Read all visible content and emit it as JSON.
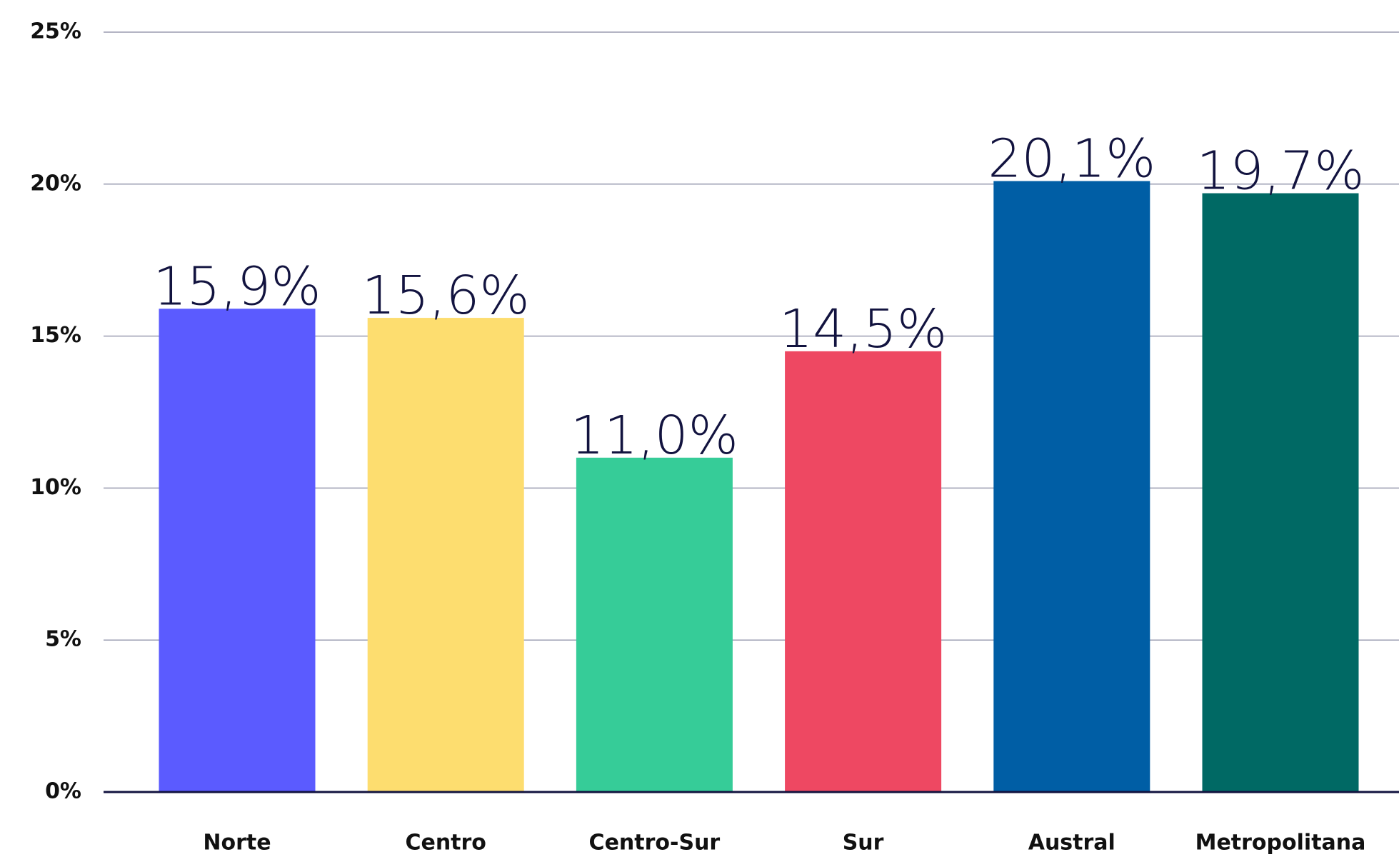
{
  "chart_data": {
    "type": "bar",
    "categories": [
      "Norte",
      "Centro",
      "Centro-Sur",
      "Sur",
      "Austral",
      "Metropolitana"
    ],
    "values": [
      15.9,
      15.6,
      11.0,
      14.5,
      20.1,
      19.7
    ],
    "value_labels": [
      "15,9%",
      "15,6%",
      "11,0%",
      "14,5%",
      "20,1%",
      "19,7%"
    ],
    "colors": [
      "#5b5bff",
      "#fddd6f",
      "#36cc98",
      "#ee4862",
      "#005ea5",
      "#006964"
    ],
    "ylim": [
      0,
      25
    ],
    "yticks": [
      {
        "value": 0,
        "label": "0%"
      },
      {
        "value": 5,
        "label": "5%"
      },
      {
        "value": 10,
        "label": "10%"
      },
      {
        "value": 15,
        "label": "15%"
      },
      {
        "value": 20,
        "label": "20%"
      },
      {
        "value": 25,
        "label": "25%"
      }
    ],
    "grid": true
  }
}
